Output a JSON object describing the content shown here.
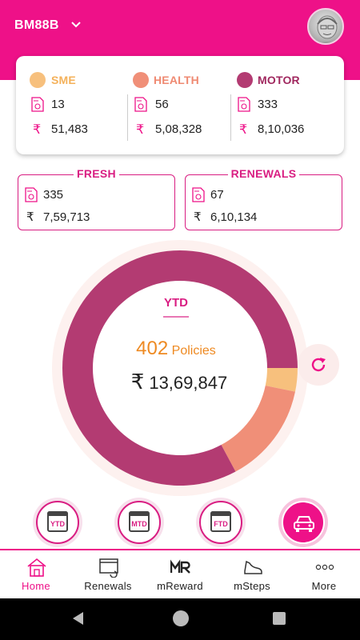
{
  "header": {
    "user_code": "BM88B"
  },
  "summary": {
    "sme": {
      "label": "SME",
      "color": "#f7c07d",
      "count": "13",
      "amount": "51,483"
    },
    "health": {
      "label": "HEALTH",
      "color": "#f08f78",
      "count": "56",
      "amount": "5,08,328"
    },
    "motor": {
      "label": "MOTOR",
      "color": "#b33b72",
      "count": "333",
      "amount": "8,10,036"
    },
    "currency": "₹"
  },
  "fresh": {
    "title": "FRESH",
    "count": "335",
    "amount": "7,59,713"
  },
  "renewals": {
    "title": "RENEWALS",
    "count": "67",
    "amount": "6,10,134"
  },
  "donut": {
    "period": "YTD",
    "policies_count": "402",
    "policies_word": "Policies",
    "amount": "13,69,847",
    "segments": [
      {
        "name": "SME",
        "color": "#f7c07d",
        "value": 13
      },
      {
        "name": "HEALTH",
        "color": "#f08f78",
        "value": 56
      },
      {
        "name": "MOTOR",
        "color": "#b33b72",
        "value": 333
      }
    ]
  },
  "period_buttons": [
    "YTD",
    "MTD",
    "FTD"
  ],
  "nav": {
    "home": "Home",
    "renewals": "Renewals",
    "mreward": "mReward",
    "msteps": "mSteps",
    "more": "More"
  },
  "colors": {
    "brand": "#ee1188",
    "accent": "#d91d82"
  }
}
